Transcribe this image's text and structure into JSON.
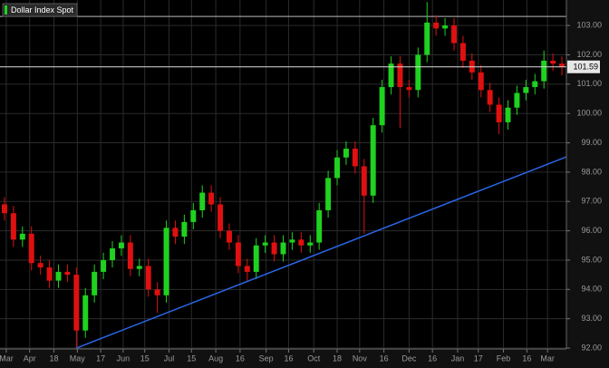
{
  "chart_data": {
    "type": "candlestick",
    "title": "Dollar Index Spot",
    "open": [
      96.9,
      96.6,
      95.7,
      95.9,
      94.9,
      94.75,
      94.3,
      94.6,
      94.5,
      92.6,
      93.8,
      94.6,
      95.0,
      95.4,
      95.6,
      94.7,
      94.8,
      94.0,
      93.8,
      96.1,
      95.8,
      96.3,
      96.7,
      97.3,
      96.9,
      96.0,
      95.6,
      94.8,
      94.6,
      95.5,
      95.6,
      95.2,
      95.6,
      95.7,
      95.5,
      95.6,
      96.7,
      97.8,
      98.5,
      98.8,
      98.2,
      97.2,
      99.6,
      100.9,
      101.7,
      100.9,
      100.8,
      102.0,
      103.1,
      102.9,
      103.0,
      102.4,
      101.8,
      101.4,
      100.8,
      100.3,
      99.7,
      100.2,
      100.7,
      100.9,
      101.1,
      101.8,
      101.7
    ],
    "high": [
      97.15,
      96.85,
      96.15,
      96.15,
      95.15,
      95.0,
      94.85,
      94.85,
      94.75,
      94.05,
      94.85,
      95.25,
      95.65,
      95.85,
      95.85,
      95.05,
      95.05,
      94.25,
      96.35,
      96.35,
      96.55,
      96.95,
      97.55,
      97.55,
      97.15,
      96.25,
      95.85,
      95.05,
      95.75,
      95.85,
      95.85,
      95.85,
      95.95,
      95.95,
      95.85,
      96.95,
      98.05,
      98.75,
      99.05,
      99.05,
      98.45,
      99.85,
      101.15,
      101.95,
      101.95,
      101.15,
      102.25,
      103.8,
      103.35,
      103.25,
      103.25,
      102.65,
      102.05,
      101.65,
      101.05,
      100.55,
      100.45,
      100.95,
      101.15,
      101.35,
      102.15,
      102.05,
      101.95
    ],
    "low": [
      96.35,
      95.45,
      95.45,
      94.65,
      94.5,
      94.05,
      94.05,
      94.25,
      92.0,
      92.35,
      93.55,
      94.35,
      94.75,
      95.15,
      94.45,
      94.45,
      93.75,
      93.2,
      93.55,
      95.55,
      95.55,
      96.05,
      96.45,
      96.65,
      95.75,
      95.35,
      94.55,
      94.3,
      94.35,
      95.25,
      94.95,
      94.95,
      95.35,
      95.25,
      95.25,
      95.35,
      96.45,
      97.55,
      98.25,
      97.95,
      95.9,
      96.95,
      99.35,
      100.65,
      99.5,
      100.55,
      100.55,
      101.75,
      102.65,
      102.65,
      102.15,
      101.55,
      101.15,
      100.55,
      100.05,
      99.3,
      99.45,
      99.95,
      100.45,
      100.65,
      100.85,
      101.45,
      101.3
    ],
    "close": [
      96.6,
      95.7,
      95.9,
      94.9,
      94.75,
      94.3,
      94.6,
      94.5,
      92.6,
      93.8,
      94.6,
      95.0,
      95.4,
      95.6,
      94.7,
      94.8,
      94.0,
      93.8,
      96.1,
      95.8,
      96.3,
      96.7,
      97.3,
      96.9,
      96.0,
      95.6,
      94.8,
      94.6,
      95.5,
      95.6,
      95.2,
      95.6,
      95.7,
      95.5,
      95.6,
      96.7,
      97.8,
      98.5,
      98.8,
      98.2,
      97.2,
      99.6,
      100.9,
      101.7,
      100.9,
      100.8,
      102.0,
      103.1,
      102.9,
      103.0,
      102.4,
      101.8,
      101.4,
      100.8,
      100.3,
      99.7,
      100.2,
      100.7,
      100.9,
      101.1,
      101.8,
      101.7,
      101.59
    ],
    "up_color": "#1fd21f",
    "down_color": "#e01010",
    "xlim": [
      -0.5,
      62.5
    ],
    "xticks": [
      {
        "value": 0.2,
        "label": "Mar"
      },
      {
        "value": 2.8,
        "label": "Apr"
      },
      {
        "value": 5.5,
        "label": "18"
      },
      {
        "value": 8.1,
        "label": "May"
      },
      {
        "value": 10.7,
        "label": "17"
      },
      {
        "value": 13.2,
        "label": "Jun"
      },
      {
        "value": 15.6,
        "label": "15"
      },
      {
        "value": 18.3,
        "label": "Jul"
      },
      {
        "value": 20.8,
        "label": "15"
      },
      {
        "value": 23.5,
        "label": "Aug"
      },
      {
        "value": 26.2,
        "label": "16"
      },
      {
        "value": 29.1,
        "label": "Sep"
      },
      {
        "value": 31.6,
        "label": "16"
      },
      {
        "value": 34.4,
        "label": "Oct"
      },
      {
        "value": 37.0,
        "label": "18"
      },
      {
        "value": 39.5,
        "label": "Nov"
      },
      {
        "value": 42.2,
        "label": "16"
      },
      {
        "value": 45.0,
        "label": "Dec"
      },
      {
        "value": 47.6,
        "label": "16"
      },
      {
        "value": 50.4,
        "label": "Jan"
      },
      {
        "value": 52.7,
        "label": "17"
      },
      {
        "value": 55.5,
        "label": "Feb"
      },
      {
        "value": 58.1,
        "label": "16"
      },
      {
        "value": 60.4,
        "label": "Mar"
      }
    ],
    "ylim": [
      91.97,
      103.87
    ],
    "yticks": [
      {
        "value": 92,
        "label": "92.00"
      },
      {
        "value": 93,
        "label": "93.00"
      },
      {
        "value": 94,
        "label": "94.00"
      },
      {
        "value": 95,
        "label": "95.00"
      },
      {
        "value": 96,
        "label": "96.00"
      },
      {
        "value": 97,
        "label": "97.00"
      },
      {
        "value": 98,
        "label": "98.00"
      },
      {
        "value": 99,
        "label": "99.00"
      },
      {
        "value": 100,
        "label": "100.00"
      },
      {
        "value": 101,
        "label": "101.00"
      },
      {
        "value": 102,
        "label": "102.00"
      },
      {
        "value": 103,
        "label": "103.00"
      }
    ],
    "grid": true,
    "last_price": 101.59,
    "hline": 103.31,
    "trendline": {
      "x": [
        8,
        62.5
      ],
      "y": [
        92.0,
        98.52
      ],
      "color": "#2a66e8"
    }
  }
}
